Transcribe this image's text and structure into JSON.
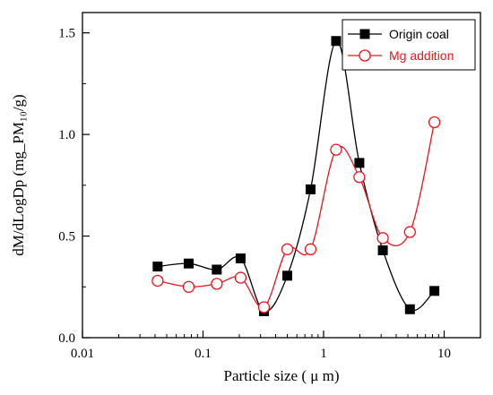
{
  "chart_data": {
    "type": "line",
    "xscale": "log",
    "xlim": [
      0.01,
      20
    ],
    "ylim": [
      0.0,
      1.6
    ],
    "xticks": [
      0.01,
      0.1,
      1,
      10
    ],
    "xtick_labels": [
      "0.01",
      "0.1",
      "1",
      "10"
    ],
    "yticks": [
      0.0,
      0.5,
      1.0,
      1.5
    ],
    "ytick_labels": [
      "0.0",
      "0.5",
      "1.0",
      "1.5"
    ],
    "xlabel": "Particle size ( μ m)",
    "ylabel": "dM/dLogDp (mg_PM₁₀/g)",
    "legend_position": "top-right",
    "grid": false,
    "series": [
      {
        "name": "Origin coal",
        "color": "#000000",
        "marker": "filled-square",
        "x": [
          0.042,
          0.076,
          0.13,
          0.205,
          0.32,
          0.5,
          0.78,
          1.27,
          1.98,
          3.1,
          5.2,
          8.3
        ],
        "y": [
          0.35,
          0.365,
          0.335,
          0.39,
          0.13,
          0.305,
          0.73,
          1.46,
          0.86,
          0.43,
          0.14,
          0.23
        ]
      },
      {
        "name": "Mg addition",
        "color": "#e8141e",
        "marker": "open-circle",
        "x": [
          0.042,
          0.076,
          0.13,
          0.205,
          0.32,
          0.5,
          0.78,
          1.27,
          1.98,
          3.1,
          5.2,
          8.3
        ],
        "y": [
          0.28,
          0.25,
          0.265,
          0.295,
          0.15,
          0.435,
          0.435,
          0.925,
          0.79,
          0.49,
          0.52,
          1.06
        ]
      }
    ]
  }
}
